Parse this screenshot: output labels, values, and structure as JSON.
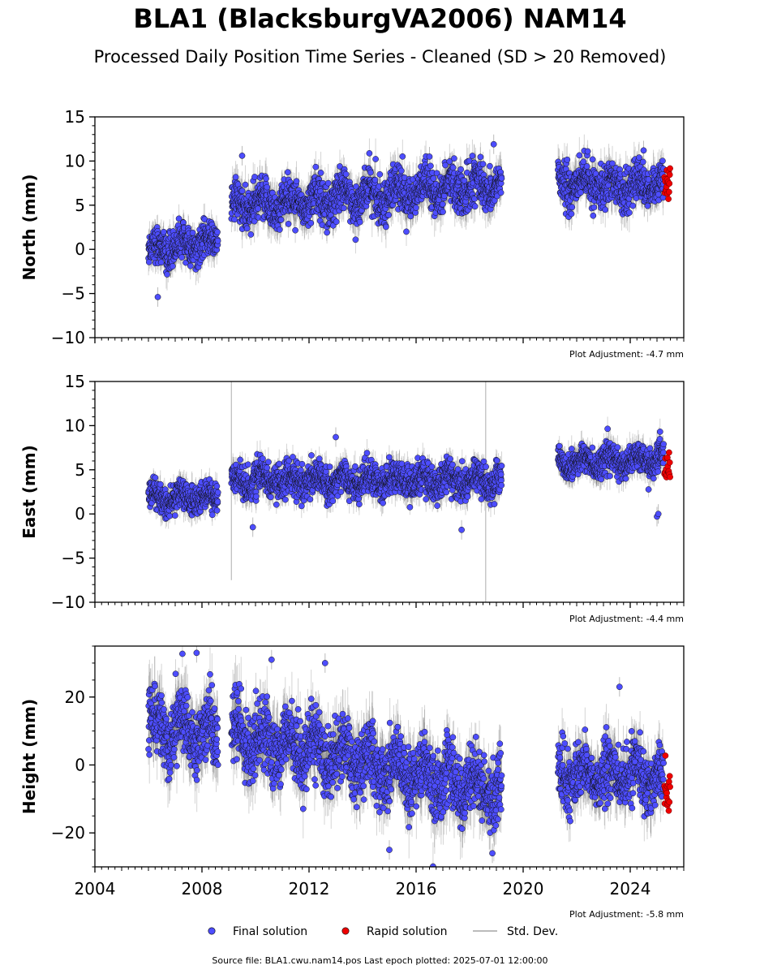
{
  "title": "BLA1 (BlacksburgVA2006) NAM14",
  "subtitle": "Processed Daily Position Time Series - Cleaned (SD > 20 Removed)",
  "source": "Source file: BLA1.cwu.nam14.pos  Last epoch plotted: 2025-07-01 12:00:00",
  "legend": {
    "final": "Final solution",
    "rapid": "Rapid solution",
    "std": "Std. Dev."
  },
  "colors": {
    "final": "#4d4dff",
    "rapid": "#ee0000",
    "std": "#bbbbbb"
  },
  "chart_data": [
    {
      "type": "scatter",
      "ylabel": "North (mm)",
      "adjustment": "Plot Adjustment: -4.7 mm",
      "xlim": [
        2004,
        2026
      ],
      "ylim": [
        -10,
        15
      ],
      "yticks": [
        -10,
        -5,
        0,
        5,
        10,
        15
      ],
      "ytick_labels": [
        "−10",
        "−5",
        "0",
        "5",
        "10",
        "15"
      ],
      "xticks": [
        2004,
        2008,
        2012,
        2016,
        2020,
        2024
      ],
      "show_xtick_labels": false,
      "segments": [
        {
          "start": 2006.0,
          "end": 2008.6,
          "mean": 0.0,
          "trend": 0.3,
          "spread": 1.3
        },
        {
          "start": 2009.1,
          "end": 2019.2,
          "mean": 4.8,
          "trend": 0.25,
          "spread": 1.6
        },
        {
          "start": 2021.3,
          "end": 2025.25,
          "mean": 7.5,
          "trend": -0.1,
          "spread": 1.5
        }
      ],
      "rapid": {
        "start": 2025.28,
        "end": 2025.5,
        "mean": 7.5,
        "spread": 0.9
      },
      "outliers": [
        [
          2006.35,
          -5.4
        ],
        [
          2009.5,
          10.6
        ],
        [
          2018.9,
          11.9
        ],
        [
          2016.5,
          10.5
        ],
        [
          2024.5,
          11.2
        ]
      ]
    },
    {
      "type": "scatter",
      "ylabel": "East (mm)",
      "adjustment": "Plot Adjustment: -4.4 mm",
      "xlim": [
        2004,
        2026
      ],
      "ylim": [
        -10,
        15
      ],
      "yticks": [
        -10,
        -5,
        0,
        5,
        10,
        15
      ],
      "ytick_labels": [
        "−10",
        "−5",
        "0",
        "5",
        "10",
        "15"
      ],
      "xticks": [
        2004,
        2008,
        2012,
        2016,
        2020,
        2024
      ],
      "show_xtick_labels": false,
      "segments": [
        {
          "start": 2006.0,
          "end": 2008.6,
          "mean": 1.8,
          "trend": 0.0,
          "spread": 1.1
        },
        {
          "start": 2009.1,
          "end": 2019.2,
          "mean": 3.8,
          "trend": 0.0,
          "spread": 1.2
        },
        {
          "start": 2021.3,
          "end": 2025.25,
          "mean": 5.8,
          "trend": 0.1,
          "spread": 1.1
        }
      ],
      "rapid": {
        "start": 2025.28,
        "end": 2025.5,
        "mean": 5.0,
        "spread": 0.9
      },
      "outliers": [
        [
          2013.0,
          8.7
        ],
        [
          2017.7,
          -1.8
        ],
        [
          2025.0,
          -0.3
        ],
        [
          2025.05,
          0.0
        ],
        [
          2009.9,
          -1.5
        ]
      ],
      "long_std_bars": [
        [
          2009.1,
          -7.5,
          15
        ],
        [
          2018.6,
          -10,
          15
        ]
      ]
    },
    {
      "type": "scatter",
      "ylabel": "Height (mm)",
      "adjustment": "Plot Adjustment: -5.8 mm",
      "xlim": [
        2004,
        2026
      ],
      "ylim": [
        -30,
        35
      ],
      "yticks": [
        -20,
        0,
        20
      ],
      "ytick_labels": [
        "−20",
        "0",
        "20"
      ],
      "xticks": [
        2004,
        2008,
        2012,
        2016,
        2020,
        2024
      ],
      "xtick_labels": [
        "2004",
        "2008",
        "2012",
        "2016",
        "2020",
        "2024"
      ],
      "show_xtick_labels": true,
      "segments": [
        {
          "start": 2006.0,
          "end": 2008.6,
          "mean": 12.0,
          "trend": -1.0,
          "spread": 6.5
        },
        {
          "start": 2009.1,
          "end": 2019.2,
          "mean": 9.0,
          "trend": -1.7,
          "spread": 6.5
        },
        {
          "start": 2021.3,
          "end": 2025.25,
          "mean": -3.0,
          "trend": 0.0,
          "spread": 5.5
        }
      ],
      "rapid": {
        "start": 2025.28,
        "end": 2025.5,
        "mean": -8.0,
        "spread": 3.0
      },
      "outliers": [
        [
          2007.8,
          33.0
        ],
        [
          2010.6,
          31.0
        ],
        [
          2015.0,
          -25.0
        ],
        [
          2023.6,
          23.0
        ],
        [
          2018.85,
          -26.0
        ],
        [
          2012.6,
          30.0
        ]
      ]
    }
  ]
}
